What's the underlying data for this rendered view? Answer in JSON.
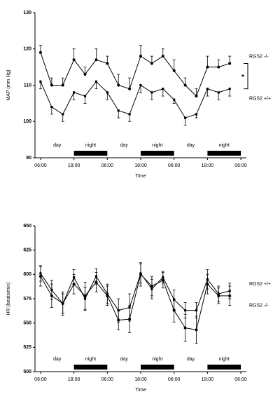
{
  "chart_data": [
    {
      "type": "line",
      "ylabel": "MAP (mm Hg)",
      "xlabel": "Time",
      "x": [
        0,
        4,
        8,
        12,
        16,
        20,
        24,
        28,
        32,
        36,
        40,
        44,
        48,
        52,
        56,
        60,
        64,
        68
      ],
      "xlim": [
        -2,
        74
      ],
      "xticks": [
        {
          "value": 0,
          "label": "06:00"
        },
        {
          "value": 12,
          "label": "18:00"
        },
        {
          "value": 24,
          "label": "06:00"
        },
        {
          "value": 36,
          "label": "18:00"
        },
        {
          "value": 48,
          "label": "06:00"
        },
        {
          "value": 60,
          "label": "18:00"
        },
        {
          "value": 72,
          "label": "06:00"
        }
      ],
      "ylim": [
        90,
        130
      ],
      "yticks": [
        90,
        100,
        110,
        120,
        130
      ],
      "significance": "*",
      "periods": [
        {
          "label": "day",
          "start": 0,
          "end": 12
        },
        {
          "label": "night",
          "start": 12,
          "end": 24,
          "fill": "#000000"
        },
        {
          "label": "day",
          "start": 24,
          "end": 36
        },
        {
          "label": "night",
          "start": 36,
          "end": 48,
          "fill": "#000000"
        },
        {
          "label": "day",
          "start": 48,
          "end": 60
        },
        {
          "label": "night",
          "start": 60,
          "end": 72,
          "fill": "#000000"
        }
      ],
      "series": [
        {
          "name": "RGS2 -/-",
          "color": "#000000",
          "marker": "circle",
          "error_direction": "up",
          "values": [
            119,
            110,
            110,
            117,
            113,
            117,
            116,
            110,
            109,
            118,
            116,
            118,
            114,
            110,
            107,
            115,
            115,
            116
          ],
          "errors": [
            2,
            2,
            2,
            3,
            2,
            3,
            2,
            3,
            3,
            3,
            2,
            2,
            3,
            2,
            2,
            3,
            2,
            2
          ]
        },
        {
          "name": "RGS2 +/+",
          "color": "#000000",
          "marker": "square",
          "error_direction": "down",
          "values": [
            111,
            104,
            102,
            108,
            107,
            111,
            108,
            103,
            102,
            110,
            108,
            109,
            106,
            101,
            102,
            109,
            108,
            109
          ],
          "errors": [
            2,
            2,
            2,
            2,
            2,
            2,
            2,
            2,
            2,
            2,
            2,
            2,
            1,
            2,
            1,
            2,
            2,
            2
          ]
        }
      ]
    },
    {
      "type": "line",
      "ylabel": "HR (beats/min)",
      "xlabel": "Time",
      "x": [
        0,
        4,
        8,
        12,
        16,
        20,
        24,
        28,
        32,
        36,
        40,
        44,
        48,
        52,
        56,
        60,
        64,
        68
      ],
      "xlim": [
        -2,
        74
      ],
      "xticks": [
        {
          "value": 0,
          "label": "06:00"
        },
        {
          "value": 12,
          "label": "18:00"
        },
        {
          "value": 24,
          "label": "06:00"
        },
        {
          "value": 36,
          "label": "18:00"
        },
        {
          "value": 48,
          "label": "06:00"
        },
        {
          "value": 60,
          "label": "18:00"
        },
        {
          "value": 72,
          "label": "06:00"
        }
      ],
      "ylim": [
        500,
        650
      ],
      "yticks": [
        500,
        525,
        550,
        575,
        600,
        625,
        650
      ],
      "periods": [
        {
          "label": "day",
          "start": 0,
          "end": 12
        },
        {
          "label": "night",
          "start": 12,
          "end": 24,
          "fill": "#000000"
        },
        {
          "label": "day",
          "start": 24,
          "end": 36
        },
        {
          "label": "night",
          "start": 36,
          "end": 48,
          "fill": "#000000"
        },
        {
          "label": "day",
          "start": 48,
          "end": 60
        },
        {
          "label": "night",
          "start": 60,
          "end": 72,
          "fill": "#000000"
        }
      ],
      "series": [
        {
          "name": "RGS2 +/+",
          "color": "#000000",
          "marker": "square",
          "error_direction": "both",
          "values": [
            601,
            584,
            570,
            597,
            575,
            598,
            580,
            563,
            566,
            601,
            585,
            597,
            574,
            563,
            563,
            595,
            580,
            583
          ],
          "errors": [
            8,
            10,
            10,
            8,
            12,
            8,
            10,
            12,
            14,
            10,
            10,
            6,
            10,
            8,
            8,
            10,
            8,
            8
          ]
        },
        {
          "name": "RGS2 -/-",
          "color": "#000000",
          "marker": "circle",
          "error_direction": "both",
          "values": [
            598,
            578,
            570,
            590,
            578,
            592,
            578,
            553,
            554,
            600,
            588,
            594,
            563,
            545,
            543,
            590,
            578,
            578
          ],
          "errors": [
            10,
            12,
            12,
            10,
            14,
            10,
            10,
            10,
            14,
            12,
            10,
            8,
            12,
            14,
            14,
            10,
            8,
            10
          ]
        }
      ]
    }
  ]
}
